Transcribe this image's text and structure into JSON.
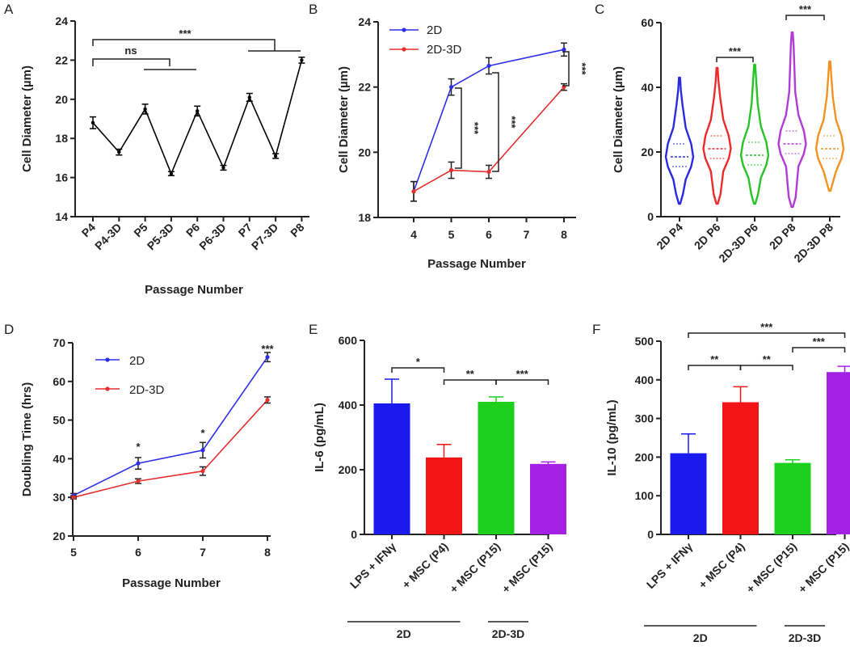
{
  "figure": {
    "panels": [
      "A",
      "B",
      "C",
      "D",
      "E",
      "F"
    ]
  },
  "chart_data": [
    {
      "id": "A",
      "type": "line",
      "categories": [
        "P4",
        "P4-3D",
        "P5",
        "P5-3D",
        "P6",
        "P6-3D",
        "P7",
        "P7-3D",
        "P8"
      ],
      "values": [
        18.8,
        17.3,
        19.5,
        16.2,
        19.4,
        16.5,
        20.1,
        17.1,
        22.0
      ],
      "errors": [
        0.3,
        0.15,
        0.25,
        0.1,
        0.25,
        0.12,
        0.2,
        0.12,
        0.15
      ],
      "title": "",
      "xlabel": "Passage Number",
      "ylabel": "Cell Diameter (µm)",
      "ylim": [
        14,
        24
      ],
      "yticks": [
        14,
        16,
        18,
        20,
        22,
        24
      ],
      "annotations": [
        {
          "text": "ns"
        },
        {
          "text": "***"
        }
      ],
      "color": "#000000"
    },
    {
      "id": "B",
      "type": "line",
      "x": [
        4,
        5,
        6,
        8
      ],
      "series": [
        {
          "name": "2D",
          "values": [
            18.8,
            22.0,
            22.65,
            23.15
          ],
          "errors": [
            0.3,
            0.25,
            0.25,
            0.2
          ],
          "color": "#2d2ded"
        },
        {
          "name": "2D-3D",
          "values": [
            18.8,
            19.45,
            19.4,
            22.0
          ],
          "errors": [
            0.3,
            0.25,
            0.2,
            0.1
          ],
          "color": "#e62e2e"
        }
      ],
      "xlabel": "Passage Number",
      "ylabel": "Cell Diameter (µm)",
      "xticks": [
        4,
        5,
        6,
        7,
        8
      ],
      "ylim": [
        18,
        24
      ],
      "yticks": [
        18,
        20,
        22,
        24
      ],
      "annotations": [
        {
          "text": "***"
        },
        {
          "text": "***"
        },
        {
          "text": "***"
        }
      ]
    },
    {
      "id": "C",
      "type": "violin",
      "categories": [
        "2D P4",
        "2D P6",
        "2D-3D P6",
        "2D P8",
        "2D-3D P8"
      ],
      "colors": [
        "#2a2ae0",
        "#ee2a2a",
        "#27c427",
        "#b23ad6",
        "#f39221"
      ],
      "medians": [
        18.5,
        21.0,
        19.0,
        22.5,
        21.0
      ],
      "ranges": [
        [
          4,
          43
        ],
        [
          4,
          46
        ],
        [
          4,
          47
        ],
        [
          3,
          57
        ],
        [
          8,
          48
        ]
      ],
      "ylabel": "Cell Diameter (µm)",
      "ylim": [
        0,
        60
      ],
      "yticks": [
        0,
        20,
        40,
        60
      ],
      "annotations": [
        {
          "text": "***"
        },
        {
          "text": "***"
        }
      ]
    },
    {
      "id": "D",
      "type": "line",
      "x": [
        5,
        6,
        7,
        8
      ],
      "series": [
        {
          "name": "2D",
          "values": [
            30.5,
            38.8,
            42.2,
            66.3
          ],
          "errors": [
            0.5,
            1.5,
            2.0,
            1.2
          ],
          "color": "#2d2ded"
        },
        {
          "name": "2D-3D",
          "values": [
            30.0,
            34.2,
            36.8,
            55.2
          ],
          "errors": [
            0.4,
            0.6,
            1.1,
            0.8
          ],
          "color": "#e62e2e"
        }
      ],
      "xlabel": "Passage Number",
      "ylabel": "Doubling Time (hrs)",
      "xticks": [
        5,
        6,
        7,
        8
      ],
      "ylim": [
        20,
        70
      ],
      "yticks": [
        20,
        30,
        40,
        50,
        60,
        70
      ],
      "annotations": [
        {
          "text": "*"
        },
        {
          "text": "*"
        },
        {
          "text": "***"
        }
      ]
    },
    {
      "id": "E",
      "type": "bar",
      "categories": [
        "LPS + IFNγ",
        "+ MSC (P4)",
        "+ MSC (P15)",
        "+ MSC (P15)"
      ],
      "values": [
        405,
        238,
        410,
        218
      ],
      "errors": [
        75,
        40,
        15,
        6
      ],
      "colors": [
        "#1a1aee",
        "#f21515",
        "#1ed01e",
        "#a621e6"
      ],
      "ylabel": "IL-6 (pg/mL)",
      "ylim": [
        0,
        600
      ],
      "yticks": [
        0,
        200,
        400,
        600
      ],
      "groups": [
        "2D",
        "2D-3D"
      ],
      "annotations": [
        {
          "text": "*"
        },
        {
          "text": "**"
        },
        {
          "text": "***"
        }
      ]
    },
    {
      "id": "F",
      "type": "bar",
      "categories": [
        "LPS + IFNγ",
        "+ MSC (P4)",
        "+ MSC (P15)",
        "+ MSC (P15)"
      ],
      "values": [
        210,
        342,
        185,
        420
      ],
      "errors": [
        50,
        40,
        8,
        15
      ],
      "colors": [
        "#1a1aee",
        "#f21515",
        "#1ed01e",
        "#a621e6"
      ],
      "ylabel": "IL-10 (pg/mL)",
      "ylim": [
        0,
        500
      ],
      "yticks": [
        0,
        100,
        200,
        300,
        400,
        500
      ],
      "groups": [
        "2D",
        "2D-3D"
      ],
      "annotations": [
        {
          "text": "***"
        },
        {
          "text": "**"
        },
        {
          "text": "**"
        },
        {
          "text": "***"
        }
      ]
    }
  ]
}
